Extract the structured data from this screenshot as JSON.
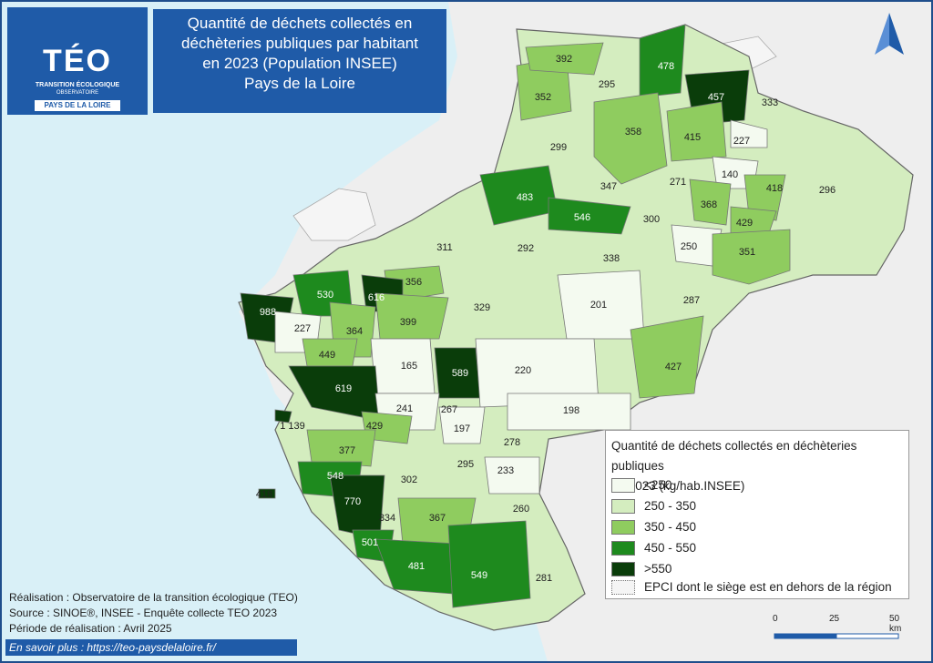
{
  "title": {
    "line1": "Quantité de déchets collectés en",
    "line2": "déchèteries publiques par habitant",
    "line3": "en 2023 (Population INSEE)",
    "line4": "Pays de la Loire"
  },
  "logo": {
    "main": "TÉO",
    "sub1": "TRANSITION ÉCOLOGIQUE",
    "sub2": "OBSERVATOIRE",
    "badge": "PAYS DE LA LOIRE"
  },
  "legend": {
    "title_line1": "Quantité de déchets collectés en déchèteries publiques",
    "title_line2": "en 2023 (kg/hab.INSEE)",
    "classes": [
      {
        "label": "<250",
        "color": "#f4faf0"
      },
      {
        "label": "250 - 350",
        "color": "#d4edbf"
      },
      {
        "label": "350 - 450",
        "color": "#8fcc5f"
      },
      {
        "label": "450 - 550",
        "color": "#1e8a1e"
      },
      {
        "label": ">550",
        "color": "#0a3d0a"
      }
    ],
    "outside_label": "EPCI dont le siège est en dehors de la région"
  },
  "credits": {
    "line1": "Réalisation : Observatoire de la transition écologique (TEO)",
    "line2": "Source : SINOE®, INSEE - Enquête collecte TEO 2023",
    "line3": "Période de réalisation : Avril 2025"
  },
  "link": "En savoir plus : https://teo-paysdelaloire.fr/",
  "scale": {
    "l0": "0",
    "l1": "25",
    "l2": "50 km"
  },
  "colors": {
    "sea": "#d9f0f7",
    "land_out": "#eeeeee",
    "frame": "#1f4e8c"
  },
  "epci_values": [
    "392",
    "295",
    "478",
    "352",
    "457",
    "333",
    "358",
    "415",
    "227",
    "299",
    "140",
    "347",
    "271",
    "296",
    "418",
    "483",
    "368",
    "546",
    "300",
    "429",
    "250",
    "311",
    "292",
    "338",
    "351",
    "356",
    "530",
    "616",
    "988",
    "227",
    "364",
    "399",
    "329",
    "201",
    "287",
    "449",
    "165",
    "589",
    "427",
    "220",
    "619",
    "241",
    "267",
    "198",
    "197",
    "1 139",
    "429",
    "278",
    "377",
    "295",
    "233",
    "302",
    "548",
    "260",
    "418",
    "770",
    "334",
    "367",
    "501",
    "481",
    "549",
    "281"
  ]
}
